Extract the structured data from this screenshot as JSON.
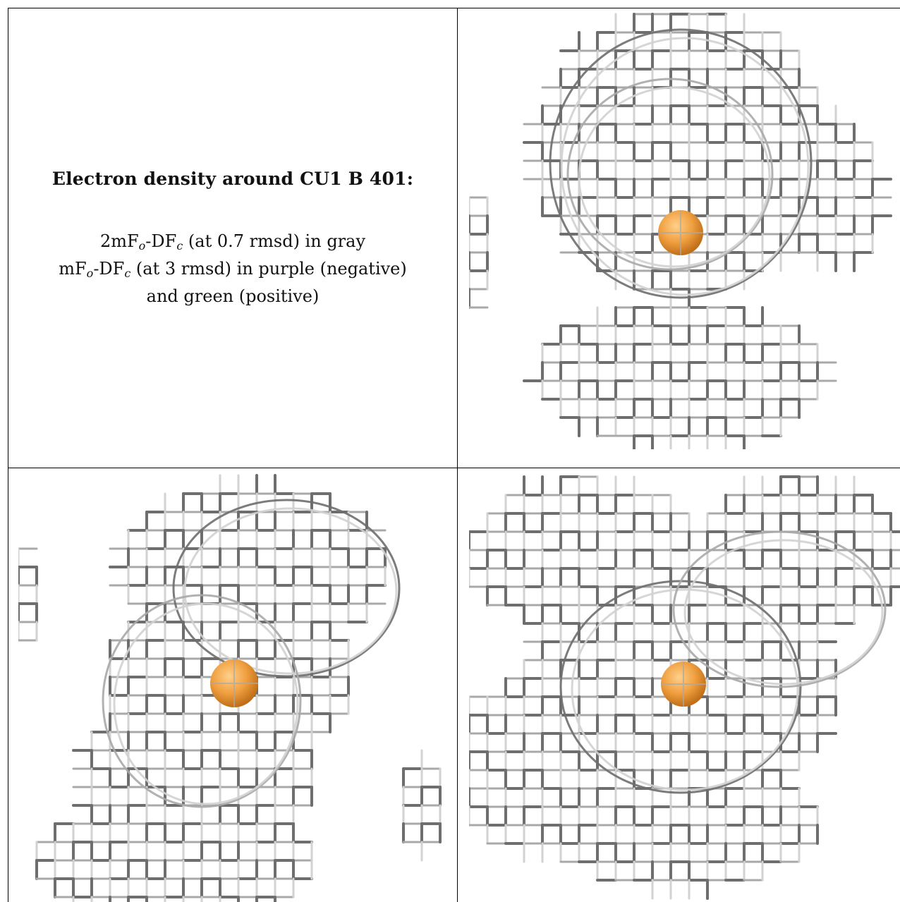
{
  "caption": {
    "title": "Electron density around CU1 B 401:",
    "line1_prefix": "2mF",
    "line1_sub1": "o",
    "line1_mid": "-DF",
    "line1_sub2": "c",
    "line1_suffix": " (at 0.7 rmsd) in gray",
    "line2_prefix": "mF",
    "line2_sub1": "o",
    "line2_mid": "-DF",
    "line2_sub2": "c",
    "line2_suffix": " (at 3 rmsd) in purple (negative)",
    "line3": "and green (positive)"
  },
  "views": [
    {
      "name": "view-top-right"
    },
    {
      "name": "view-bottom-left"
    },
    {
      "name": "view-bottom-right"
    }
  ],
  "colors": {
    "mesh_dark": "#6e6e6e",
    "mesh_mid": "#a9a9a9",
    "mesh_light": "#d2d2d2",
    "atom": "#f0a040",
    "atom_shade": "#c06e18",
    "frame": "#000000"
  }
}
